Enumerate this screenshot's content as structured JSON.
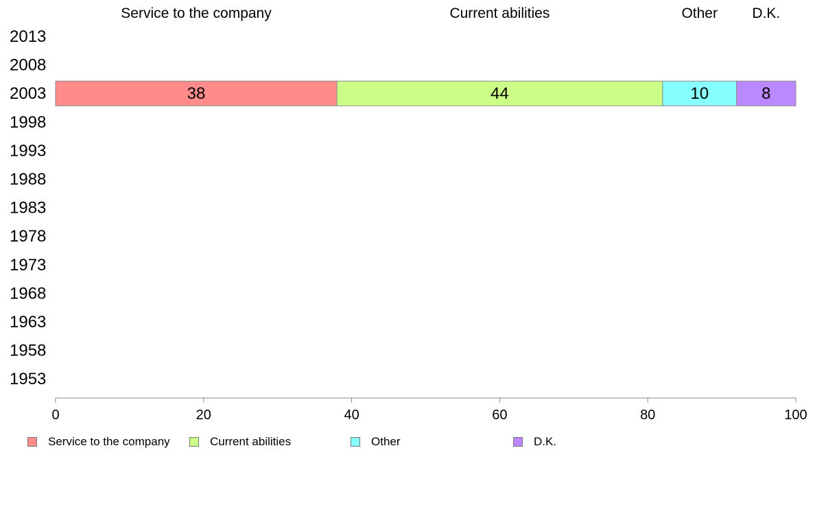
{
  "chart_data": {
    "type": "bar",
    "orientation": "horizontal",
    "stacked": true,
    "categories": [
      "2013",
      "2008",
      "2003",
      "1998",
      "1993",
      "1988",
      "1983",
      "1978",
      "1973",
      "1968",
      "1963",
      "1958",
      "1953"
    ],
    "series": [
      {
        "name": "Service to the company",
        "color": "#ff8c8a",
        "values": [
          null,
          null,
          38,
          null,
          null,
          null,
          null,
          null,
          null,
          null,
          null,
          null,
          null
        ]
      },
      {
        "name": "Current abilities",
        "color": "#ccff88",
        "values": [
          null,
          null,
          44,
          null,
          null,
          null,
          null,
          null,
          null,
          null,
          null,
          null,
          null
        ]
      },
      {
        "name": "Other",
        "color": "#88ffff",
        "values": [
          null,
          null,
          10,
          null,
          null,
          null,
          null,
          null,
          null,
          null,
          null,
          null,
          null
        ]
      },
      {
        "name": "D.K.",
        "color": "#bb88ff",
        "values": [
          null,
          null,
          8,
          null,
          null,
          null,
          null,
          null,
          null,
          null,
          null,
          null,
          null
        ]
      }
    ],
    "xlim": [
      0,
      100
    ],
    "xticks": [
      0,
      20,
      40,
      60,
      80,
      100
    ],
    "top_labels": [
      "Service to the company",
      "Current abilities",
      "Other",
      "D.K."
    ],
    "legend_position": "bottom",
    "grid": false
  }
}
